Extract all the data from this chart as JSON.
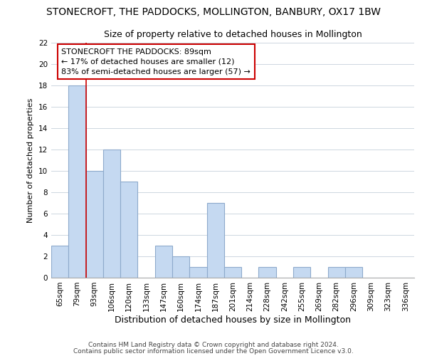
{
  "title": "STONECROFT, THE PADDOCKS, MOLLINGTON, BANBURY, OX17 1BW",
  "subtitle": "Size of property relative to detached houses in Mollington",
  "xlabel": "Distribution of detached houses by size in Mollington",
  "ylabel": "Number of detached properties",
  "bar_labels": [
    "65sqm",
    "79sqm",
    "93sqm",
    "106sqm",
    "120sqm",
    "133sqm",
    "147sqm",
    "160sqm",
    "174sqm",
    "187sqm",
    "201sqm",
    "214sqm",
    "228sqm",
    "242sqm",
    "255sqm",
    "269sqm",
    "282sqm",
    "296sqm",
    "309sqm",
    "323sqm",
    "336sqm"
  ],
  "bar_values": [
    3,
    18,
    10,
    12,
    9,
    0,
    3,
    2,
    1,
    7,
    1,
    0,
    1,
    0,
    1,
    0,
    1,
    1,
    0,
    0,
    0
  ],
  "bar_color": "#c5d9f1",
  "bar_edge_color": "#8eaacc",
  "annotation_text": "STONECROFT THE PADDOCKS: 89sqm\n← 17% of detached houses are smaller (12)\n83% of semi-detached houses are larger (57) →",
  "annotation_box_edge": "#cc0000",
  "annotation_line_color": "#cc0000",
  "ylim": [
    0,
    22
  ],
  "yticks": [
    0,
    2,
    4,
    6,
    8,
    10,
    12,
    14,
    16,
    18,
    20,
    22
  ],
  "footer_line1": "Contains HM Land Registry data © Crown copyright and database right 2024.",
  "footer_line2": "Contains public sector information licensed under the Open Government Licence v3.0.",
  "bg_color": "#ffffff",
  "grid_color": "#cdd6e0",
  "title_fontsize": 10,
  "subtitle_fontsize": 9,
  "xlabel_fontsize": 9,
  "ylabel_fontsize": 8,
  "tick_fontsize": 7.5,
  "annotation_fontsize": 8,
  "footer_fontsize": 6.5
}
